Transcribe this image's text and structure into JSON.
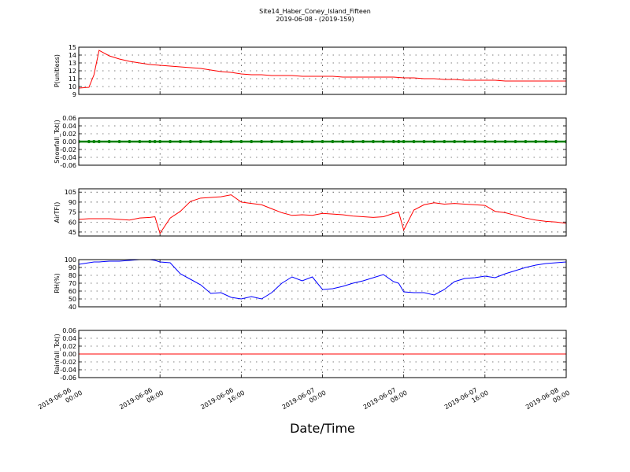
{
  "title": "Site14_Haber_Coney_Island_Fifteen",
  "subtitle": "2019-06-08 - (2019-159)",
  "chart_data": [
    {
      "type": "line",
      "ylabel": "P(unitless)",
      "color": "#ff0000",
      "x": [
        "2019-06-06 00:00",
        "2019-06-06 01:00",
        "2019-06-06 01:30",
        "2019-06-06 02:00",
        "2019-06-06 03:00",
        "2019-06-06 04:00",
        "2019-06-06 05:00",
        "2019-06-06 06:00",
        "2019-06-06 07:00",
        "2019-06-06 07:30",
        "2019-06-06 08:00",
        "2019-06-06 09:00",
        "2019-06-06 10:00",
        "2019-06-06 11:00",
        "2019-06-06 12:00",
        "2019-06-06 13:00",
        "2019-06-06 14:00",
        "2019-06-06 15:00",
        "2019-06-06 16:00",
        "2019-06-06 17:00",
        "2019-06-06 18:00",
        "2019-06-06 19:00",
        "2019-06-06 20:00",
        "2019-06-06 21:00",
        "2019-06-06 22:00",
        "2019-06-06 23:00",
        "2019-06-07 00:00",
        "2019-06-07 01:00",
        "2019-06-07 02:00",
        "2019-06-07 03:00",
        "2019-06-07 04:00",
        "2019-06-07 05:00",
        "2019-06-07 06:00",
        "2019-06-07 07:00",
        "2019-06-07 07:30",
        "2019-06-07 08:00",
        "2019-06-07 09:00",
        "2019-06-07 10:00",
        "2019-06-07 11:00",
        "2019-06-07 12:00",
        "2019-06-07 13:00",
        "2019-06-07 14:00",
        "2019-06-07 15:00",
        "2019-06-07 16:00",
        "2019-06-07 17:00",
        "2019-06-07 18:00",
        "2019-06-07 19:00",
        "2019-06-07 20:00",
        "2019-06-07 21:00",
        "2019-06-07 22:00",
        "2019-06-07 23:00",
        "2019-06-08 00:00"
      ],
      "values": [
        9.8,
        9.9,
        11.5,
        14.6,
        13.9,
        13.5,
        13.2,
        13.0,
        12.8,
        12.75,
        12.7,
        12.6,
        12.5,
        12.4,
        12.3,
        12.1,
        11.9,
        11.8,
        11.6,
        11.5,
        11.5,
        11.4,
        11.4,
        11.4,
        11.3,
        11.3,
        11.3,
        11.3,
        11.2,
        11.2,
        11.2,
        11.2,
        11.2,
        11.2,
        11.15,
        11.1,
        11.1,
        11.0,
        11.0,
        10.9,
        10.9,
        10.8,
        10.8,
        10.8,
        10.8,
        10.7,
        10.7,
        10.7,
        10.7,
        10.7,
        10.7,
        10.7
      ],
      "ylim": [
        9,
        15
      ],
      "yticks": [
        9,
        10,
        11,
        12,
        13,
        14,
        15
      ],
      "xlim": [
        "2019-06-06 00:00",
        "2019-06-08 00:00"
      ],
      "xticks": [
        "2019-06-06 00:00",
        "2019-06-06 08:00",
        "2019-06-06 16:00",
        "2019-06-07 00:00",
        "2019-06-07 08:00",
        "2019-06-07 16:00",
        "2019-06-08 00:00"
      ],
      "grid": true
    },
    {
      "type": "line",
      "ylabel": "Snowfall_Tot()",
      "color": "#008000",
      "markers": true,
      "x": [
        "2019-06-06 00:00",
        "2019-06-06 01:00",
        "2019-06-06 01:30",
        "2019-06-06 02:00",
        "2019-06-06 03:00",
        "2019-06-06 04:00",
        "2019-06-06 05:00",
        "2019-06-06 06:00",
        "2019-06-06 07:00",
        "2019-06-06 07:30",
        "2019-06-06 08:00",
        "2019-06-06 09:00",
        "2019-06-06 10:00",
        "2019-06-06 11:00",
        "2019-06-06 12:00",
        "2019-06-06 13:00",
        "2019-06-06 14:00",
        "2019-06-06 15:00",
        "2019-06-06 16:00",
        "2019-06-06 17:00",
        "2019-06-06 18:00",
        "2019-06-06 19:00",
        "2019-06-06 20:00",
        "2019-06-06 21:00",
        "2019-06-06 22:00",
        "2019-06-06 23:00",
        "2019-06-07 00:00",
        "2019-06-07 01:00",
        "2019-06-07 02:00",
        "2019-06-07 03:00",
        "2019-06-07 04:00",
        "2019-06-07 05:00",
        "2019-06-07 06:00",
        "2019-06-07 07:00",
        "2019-06-07 07:30",
        "2019-06-07 08:00",
        "2019-06-07 09:00",
        "2019-06-07 10:00",
        "2019-06-07 11:00",
        "2019-06-07 12:00",
        "2019-06-07 13:00",
        "2019-06-07 14:00",
        "2019-06-07 15:00",
        "2019-06-07 16:00",
        "2019-06-07 17:00",
        "2019-06-07 18:00",
        "2019-06-07 19:00",
        "2019-06-07 20:00",
        "2019-06-07 21:00",
        "2019-06-07 22:00",
        "2019-06-07 23:00",
        "2019-06-08 00:00"
      ],
      "values": [
        0,
        0,
        0,
        0,
        0,
        0,
        0,
        0,
        0,
        0,
        0,
        0,
        0,
        0,
        0,
        0,
        0,
        0,
        0,
        0,
        0,
        0,
        0,
        0,
        0,
        0,
        0,
        0,
        0,
        0,
        0,
        0,
        0,
        0,
        0,
        0,
        0,
        0,
        0,
        0,
        0,
        0,
        0,
        0,
        0,
        0,
        0,
        0,
        0,
        0,
        0,
        0
      ],
      "ylim": [
        -0.06,
        0.06
      ],
      "yticks": [
        -0.06,
        -0.04,
        -0.02,
        {
          "value": 0,
          "label": "0.00"
        },
        0.02,
        0.04,
        0.06
      ],
      "xlim": [
        "2019-06-06 00:00",
        "2019-06-08 00:00"
      ],
      "xticks": [
        "2019-06-06 00:00",
        "2019-06-06 08:00",
        "2019-06-06 16:00",
        "2019-06-07 00:00",
        "2019-06-07 08:00",
        "2019-06-07 16:00",
        "2019-06-08 00:00"
      ],
      "grid": true
    },
    {
      "type": "line",
      "ylabel": "AirTF()",
      "color": "#ff0000",
      "x": [
        "2019-06-06 00:00",
        "2019-06-06 01:00",
        "2019-06-06 01:30",
        "2019-06-06 02:00",
        "2019-06-06 03:00",
        "2019-06-06 04:00",
        "2019-06-06 05:00",
        "2019-06-06 06:00",
        "2019-06-06 07:00",
        "2019-06-06 07:30",
        "2019-06-06 08:00",
        "2019-06-06 09:00",
        "2019-06-06 10:00",
        "2019-06-06 11:00",
        "2019-06-06 12:00",
        "2019-06-06 13:00",
        "2019-06-06 14:00",
        "2019-06-06 15:00",
        "2019-06-06 16:00",
        "2019-06-06 17:00",
        "2019-06-06 18:00",
        "2019-06-06 19:00",
        "2019-06-06 20:00",
        "2019-06-06 21:00",
        "2019-06-06 22:00",
        "2019-06-06 23:00",
        "2019-06-07 00:00",
        "2019-06-07 01:00",
        "2019-06-07 02:00",
        "2019-06-07 03:00",
        "2019-06-07 04:00",
        "2019-06-07 05:00",
        "2019-06-07 06:00",
        "2019-06-07 07:00",
        "2019-06-07 07:30",
        "2019-06-07 08:00",
        "2019-06-07 09:00",
        "2019-06-07 10:00",
        "2019-06-07 11:00",
        "2019-06-07 12:00",
        "2019-06-07 13:00",
        "2019-06-07 14:00",
        "2019-06-07 15:00",
        "2019-06-07 16:00",
        "2019-06-07 17:00",
        "2019-06-07 18:00",
        "2019-06-07 19:00",
        "2019-06-07 20:00",
        "2019-06-07 21:00",
        "2019-06-07 22:00",
        "2019-06-07 23:00",
        "2019-06-08 00:00"
      ],
      "values": [
        64,
        65,
        65,
        65,
        65,
        64,
        63,
        66,
        67,
        68,
        43,
        66,
        76,
        91,
        96,
        97,
        98,
        101,
        90,
        88,
        86,
        80,
        74,
        70,
        71,
        70,
        73,
        72,
        71,
        69,
        68,
        67,
        68,
        73,
        75,
        48,
        78,
        86,
        89,
        87,
        88,
        87,
        86,
        85,
        76,
        74,
        70,
        66,
        63,
        61,
        60,
        58
      ],
      "ylim": [
        39,
        110
      ],
      "yticks": [
        45,
        60,
        75,
        90,
        105
      ],
      "xlim": [
        "2019-06-06 00:00",
        "2019-06-08 00:00"
      ],
      "xticks": [
        "2019-06-06 00:00",
        "2019-06-06 08:00",
        "2019-06-06 16:00",
        "2019-06-07 00:00",
        "2019-06-07 08:00",
        "2019-06-07 16:00",
        "2019-06-08 00:00"
      ],
      "grid": true
    },
    {
      "type": "line",
      "ylabel": "RH(%)",
      "color": "#0000ff",
      "x": [
        "2019-06-06 00:00",
        "2019-06-06 01:00",
        "2019-06-06 01:30",
        "2019-06-06 02:00",
        "2019-06-06 03:00",
        "2019-06-06 04:00",
        "2019-06-06 05:00",
        "2019-06-06 06:00",
        "2019-06-06 07:00",
        "2019-06-06 07:30",
        "2019-06-06 08:00",
        "2019-06-06 09:00",
        "2019-06-06 10:00",
        "2019-06-06 11:00",
        "2019-06-06 12:00",
        "2019-06-06 13:00",
        "2019-06-06 14:00",
        "2019-06-06 15:00",
        "2019-06-06 16:00",
        "2019-06-06 17:00",
        "2019-06-06 18:00",
        "2019-06-06 19:00",
        "2019-06-06 20:00",
        "2019-06-06 21:00",
        "2019-06-06 22:00",
        "2019-06-06 23:00",
        "2019-06-07 00:00",
        "2019-06-07 01:00",
        "2019-06-07 02:00",
        "2019-06-07 03:00",
        "2019-06-07 04:00",
        "2019-06-07 05:00",
        "2019-06-07 06:00",
        "2019-06-07 07:00",
        "2019-06-07 07:30",
        "2019-06-07 08:00",
        "2019-06-07 09:00",
        "2019-06-07 10:00",
        "2019-06-07 11:00",
        "2019-06-07 12:00",
        "2019-06-07 13:00",
        "2019-06-07 14:00",
        "2019-06-07 15:00",
        "2019-06-07 16:00",
        "2019-06-07 17:00",
        "2019-06-07 18:00",
        "2019-06-07 19:00",
        "2019-06-07 20:00",
        "2019-06-07 21:00",
        "2019-06-07 22:00",
        "2019-06-07 23:00",
        "2019-06-08 00:00"
      ],
      "values": [
        94,
        96,
        97,
        97,
        98,
        98,
        99,
        100,
        100,
        99,
        97,
        96,
        82,
        75,
        68,
        57,
        58,
        52,
        50,
        53,
        50,
        58,
        70,
        78,
        73,
        78,
        62,
        63,
        66,
        70,
        73,
        77,
        81,
        72,
        70,
        59,
        58,
        58,
        55,
        62,
        72,
        76,
        77,
        79,
        77,
        82,
        86,
        90,
        93,
        95,
        96,
        97
      ],
      "ylim": [
        40,
        100
      ],
      "yticks": [
        40,
        50,
        60,
        70,
        80,
        90,
        100
      ],
      "xlim": [
        "2019-06-06 00:00",
        "2019-06-08 00:00"
      ],
      "xticks": [
        "2019-06-06 00:00",
        "2019-06-06 08:00",
        "2019-06-06 16:00",
        "2019-06-07 00:00",
        "2019-06-07 08:00",
        "2019-06-07 16:00",
        "2019-06-08 00:00"
      ],
      "grid": true
    },
    {
      "type": "line",
      "ylabel": "Rainfall_Tot()",
      "color": "#ff0000",
      "xlabel": "Date/Time",
      "x": [
        "2019-06-06 00:00",
        "2019-06-06 01:00",
        "2019-06-06 01:30",
        "2019-06-06 02:00",
        "2019-06-06 03:00",
        "2019-06-06 04:00",
        "2019-06-06 05:00",
        "2019-06-06 06:00",
        "2019-06-06 07:00",
        "2019-06-06 07:30",
        "2019-06-06 08:00",
        "2019-06-06 09:00",
        "2019-06-06 10:00",
        "2019-06-06 11:00",
        "2019-06-06 12:00",
        "2019-06-06 13:00",
        "2019-06-06 14:00",
        "2019-06-06 15:00",
        "2019-06-06 16:00",
        "2019-06-06 17:00",
        "2019-06-06 18:00",
        "2019-06-06 19:00",
        "2019-06-06 20:00",
        "2019-06-06 21:00",
        "2019-06-06 22:00",
        "2019-06-06 23:00",
        "2019-06-07 00:00",
        "2019-06-07 01:00",
        "2019-06-07 02:00",
        "2019-06-07 03:00",
        "2019-06-07 04:00",
        "2019-06-07 05:00",
        "2019-06-07 06:00",
        "2019-06-07 07:00",
        "2019-06-07 07:30",
        "2019-06-07 08:00",
        "2019-06-07 09:00",
        "2019-06-07 10:00",
        "2019-06-07 11:00",
        "2019-06-07 12:00",
        "2019-06-07 13:00",
        "2019-06-07 14:00",
        "2019-06-07 15:00",
        "2019-06-07 16:00",
        "2019-06-07 17:00",
        "2019-06-07 18:00",
        "2019-06-07 19:00",
        "2019-06-07 20:00",
        "2019-06-07 21:00",
        "2019-06-07 22:00",
        "2019-06-07 23:00",
        "2019-06-08 00:00"
      ],
      "values": [
        0,
        0,
        0,
        0,
        0,
        0,
        0,
        0,
        0,
        0,
        0,
        0,
        0,
        0,
        0,
        0,
        0,
        0,
        0,
        0,
        0,
        0,
        0,
        0,
        0,
        0,
        0,
        0,
        0,
        0,
        0,
        0,
        0,
        0,
        0,
        0,
        0,
        0,
        0,
        0,
        0,
        0,
        0,
        0,
        0,
        0,
        0,
        0,
        0,
        0,
        0,
        0
      ],
      "ylim": [
        -0.06,
        0.06
      ],
      "yticks": [
        -0.06,
        -0.04,
        -0.02,
        {
          "value": 0,
          "label": "0.00"
        },
        0.02,
        0.04,
        0.06
      ],
      "xlim": [
        "2019-06-06 00:00",
        "2019-06-08 00:00"
      ],
      "xticks": [
        "2019-06-06 00:00",
        "2019-06-06 08:00",
        "2019-06-06 16:00",
        "2019-06-07 00:00",
        "2019-06-07 08:00",
        "2019-06-07 16:00",
        "2019-06-08 00:00"
      ],
      "grid": true
    }
  ]
}
